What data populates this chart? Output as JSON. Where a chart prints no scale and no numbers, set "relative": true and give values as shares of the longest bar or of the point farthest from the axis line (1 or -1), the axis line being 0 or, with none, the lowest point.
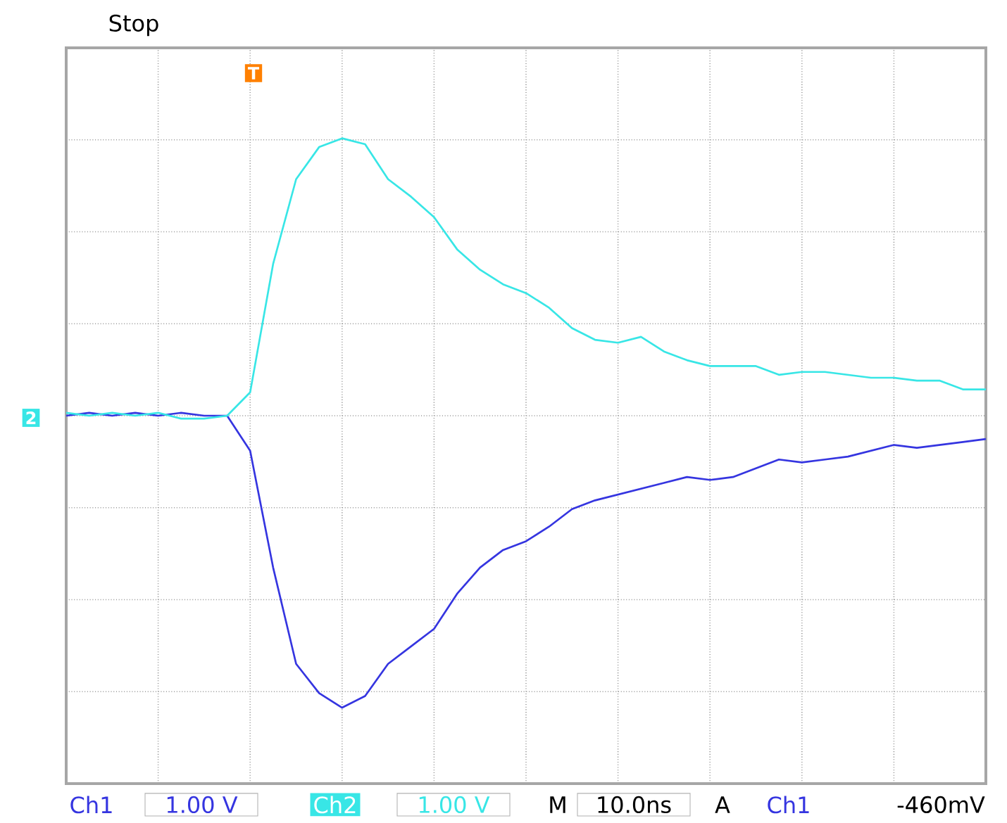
{
  "chart_data": {
    "type": "line",
    "relative": true,
    "grid": true,
    "legend": "bottom",
    "categories": [
      null,
      null,
      null,
      null,
      null,
      null,
      null,
      null,
      null,
      null,
      null,
      null,
      null,
      null,
      null,
      null,
      null,
      null,
      null,
      null,
      null,
      null,
      null,
      null,
      null,
      null,
      null,
      null,
      null,
      null,
      null,
      null,
      null,
      null,
      null,
      null,
      null,
      null,
      null,
      null,
      null
    ],
    "series": [
      {
        "name": "Ch1",
        "color": "#3535e0",
        "values": [
          0,
          0.01,
          0,
          0.01,
          0,
          0.01,
          0,
          0,
          -0.12,
          -0.52,
          -0.85,
          -0.95,
          -1,
          -0.96,
          -0.85,
          -0.79,
          -0.73,
          -0.61,
          -0.52,
          -0.46,
          -0.43,
          -0.38,
          -0.32,
          -0.29,
          -0.27,
          -0.25,
          -0.23,
          -0.21,
          -0.22,
          -0.21,
          -0.18,
          -0.15,
          -0.16,
          -0.15,
          -0.14,
          -0.12,
          -0.1,
          -0.11,
          -0.1,
          -0.09,
          -0.08
        ]
      },
      {
        "name": "Ch2",
        "color": "#38e6e6",
        "values": [
          0.01,
          0,
          0.01,
          0,
          0.01,
          -0.01,
          -0.01,
          0,
          0.08,
          0.52,
          0.81,
          0.92,
          0.95,
          0.93,
          0.81,
          0.75,
          0.68,
          0.57,
          0.5,
          0.45,
          0.42,
          0.37,
          0.3,
          0.26,
          0.25,
          0.27,
          0.22,
          0.19,
          0.17,
          0.17,
          0.17,
          0.14,
          0.15,
          0.15,
          0.14,
          0.13,
          0.13,
          0.12,
          0.12,
          0.09,
          0.09
        ]
      }
    ],
    "annotations": [
      "Stop",
      "1.00 V",
      "1.00 V",
      "M",
      "10.0ns",
      "A",
      "Ch1",
      "-460mV",
      "T",
      "2"
    ]
  }
}
